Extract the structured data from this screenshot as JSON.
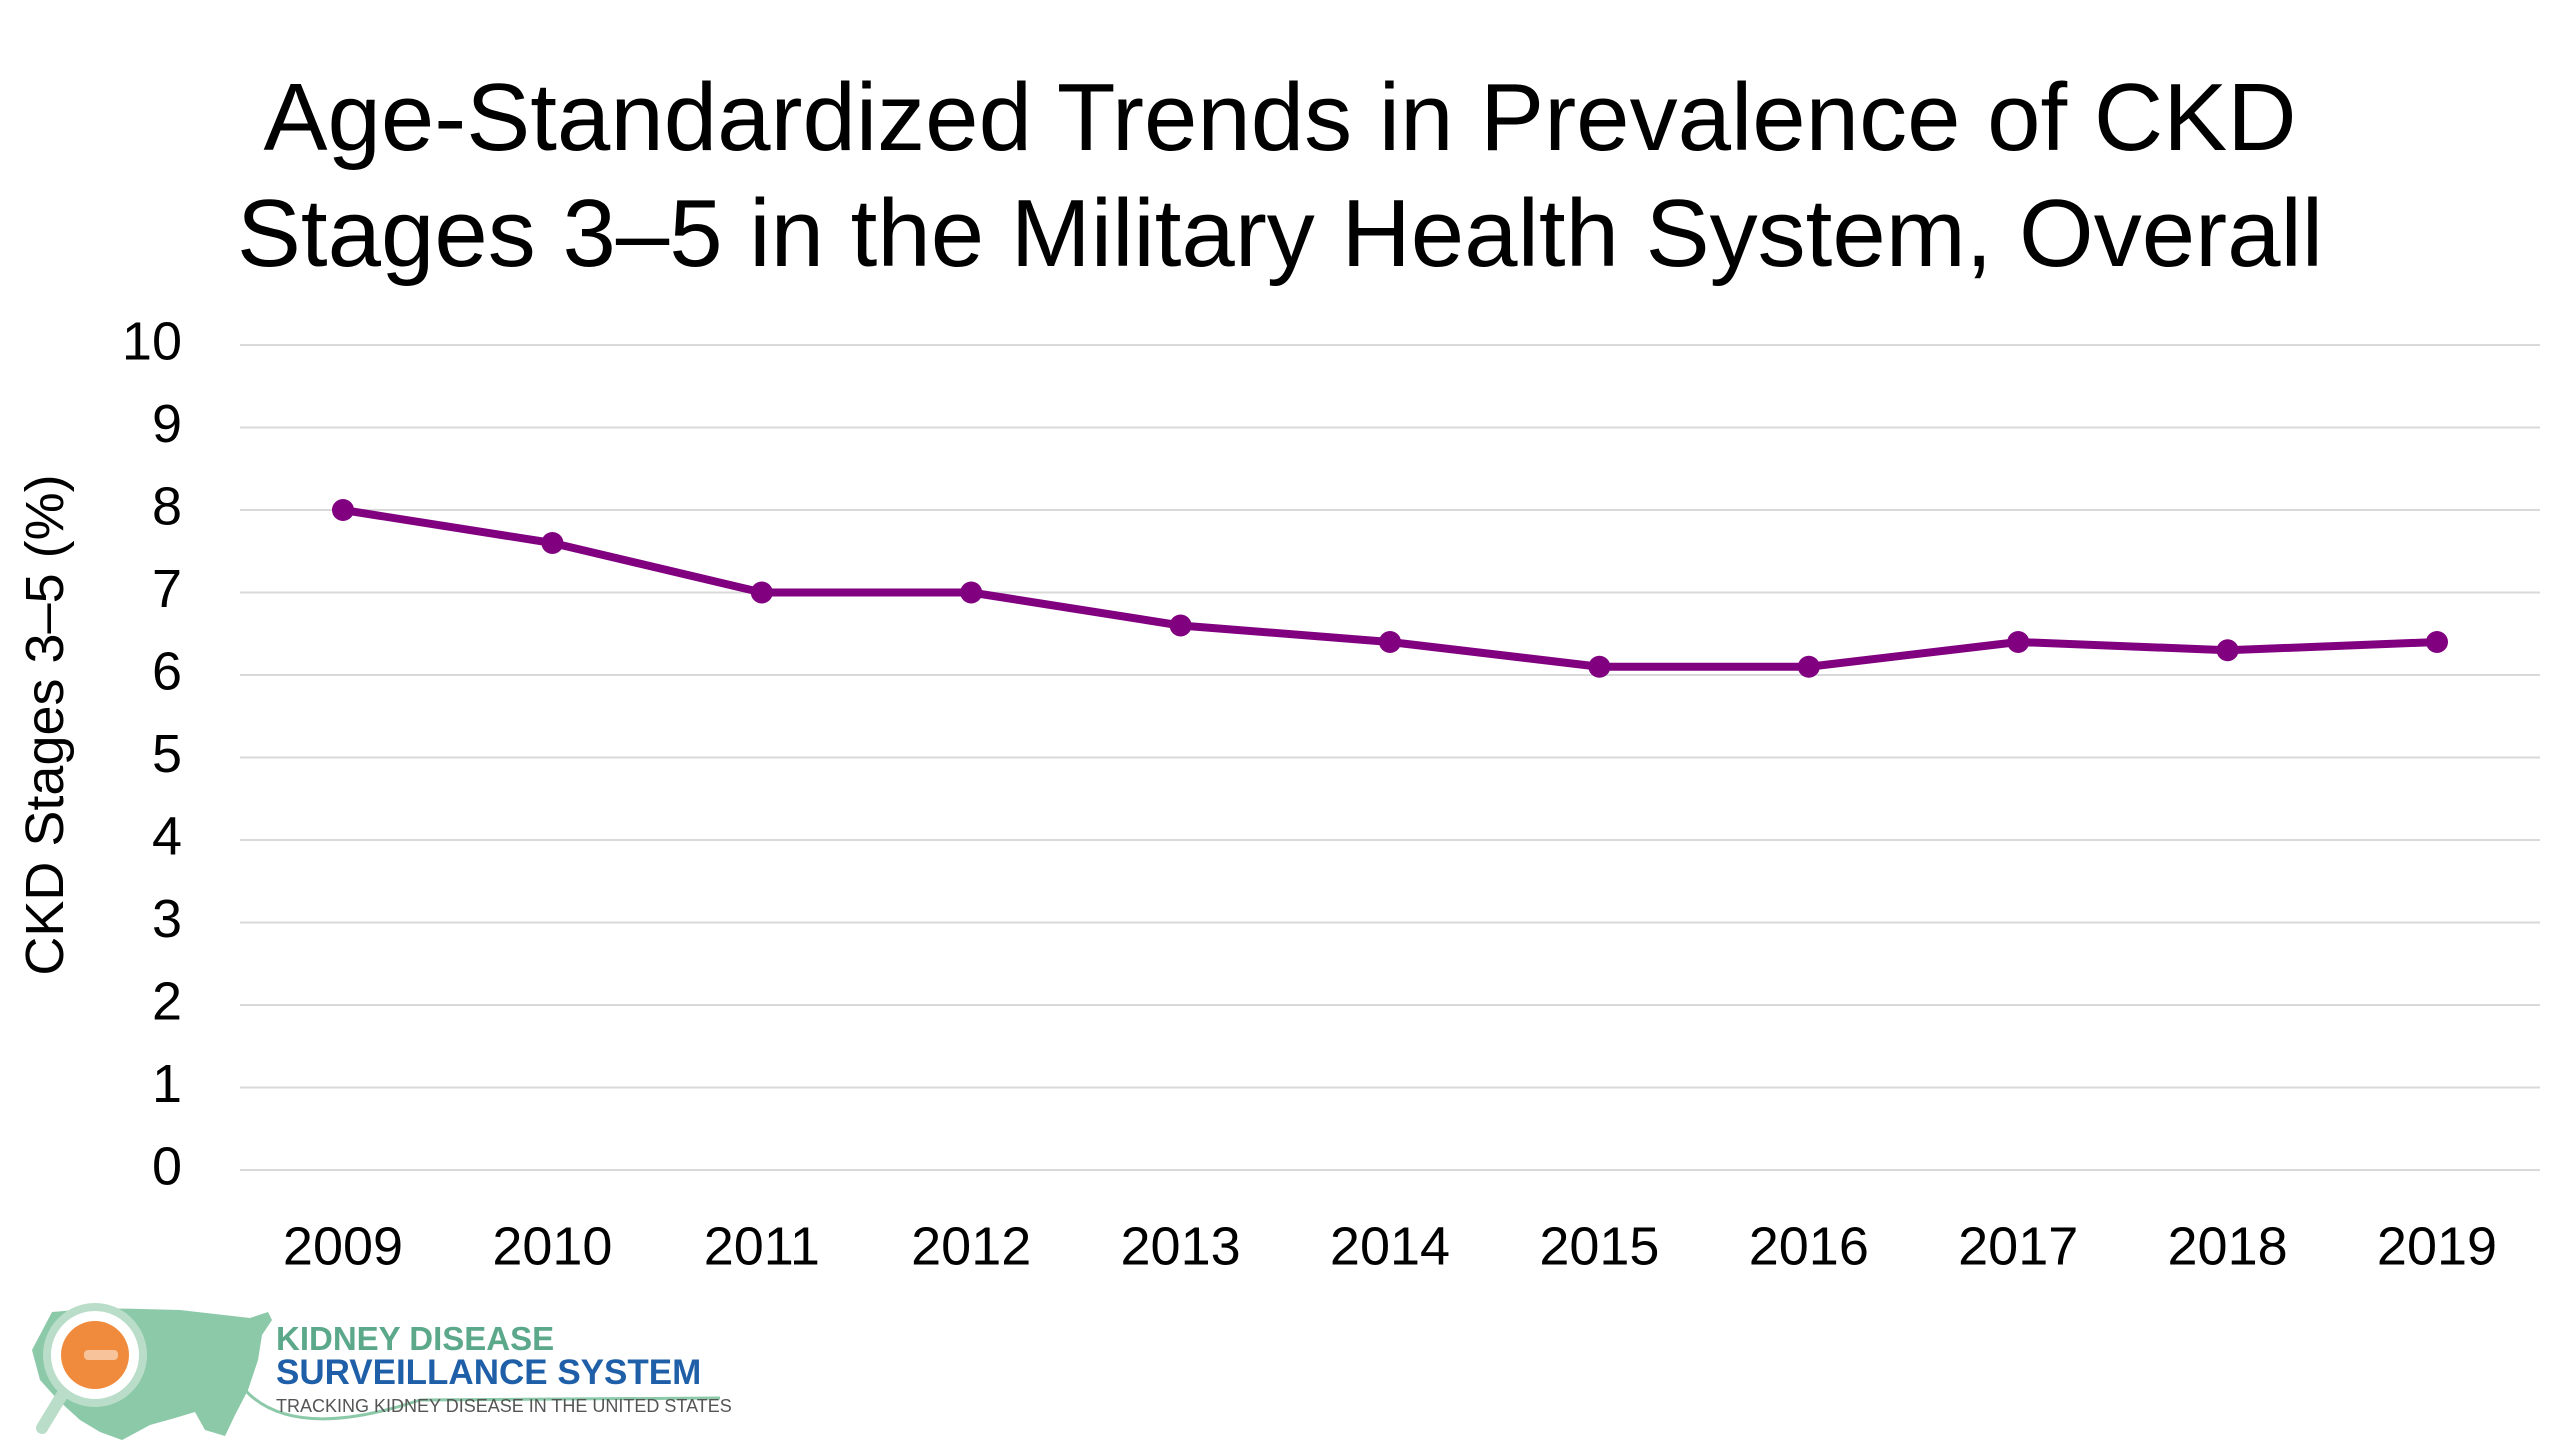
{
  "chart_data": {
    "type": "line",
    "title_line1": "Age-Standardized Trends in Prevalence of CKD",
    "title_line2": "Stages 3–5 in the Military Health System, Overall",
    "xlabel": "",
    "ylabel": "CKD Stages 3–5 (%)",
    "categories": [
      "2009",
      "2010",
      "2011",
      "2012",
      "2013",
      "2014",
      "2015",
      "2016",
      "2017",
      "2018",
      "2019"
    ],
    "series": [
      {
        "values": [
          8.0,
          7.6,
          7.0,
          7.0,
          6.6,
          6.4,
          6.1,
          6.1,
          6.4,
          6.3,
          6.4
        ],
        "color": "#800080"
      }
    ],
    "ylim": [
      0,
      10
    ],
    "yticks": [
      0,
      1,
      2,
      3,
      4,
      5,
      6,
      7,
      8,
      9,
      10
    ],
    "grid": true,
    "legend": "none"
  },
  "logo": {
    "line1": "KIDNEY DISEASE",
    "line2": "SURVEILLANCE SYSTEM",
    "tagline": "TRACKING KIDNEY DISEASE IN THE UNITED STATES",
    "colors": {
      "map": "#8cc9a8",
      "primary_text": "#1f5fa8",
      "secondary_text": "#5ba88a",
      "magnifier": "#f08a3c"
    }
  }
}
